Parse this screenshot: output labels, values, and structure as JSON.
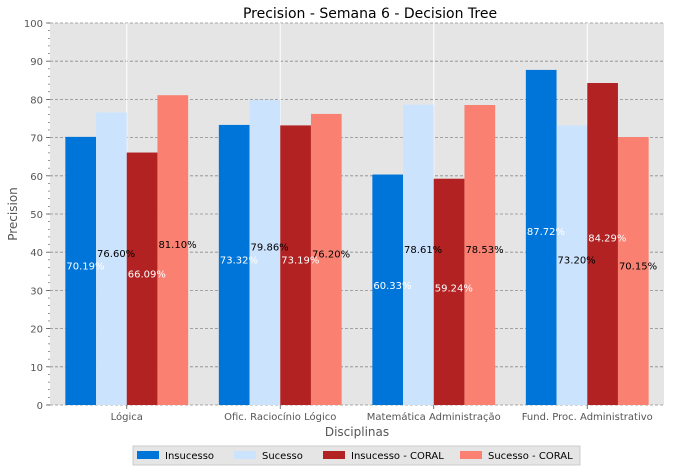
{
  "chart_data": {
    "type": "bar",
    "title": "Precision - Semana 6 - Decision Tree",
    "xlabel": "Disciplinas",
    "ylabel": "Precision",
    "ylim": [
      0,
      100
    ],
    "yticks": [
      0,
      10,
      20,
      30,
      40,
      50,
      60,
      70,
      80,
      90,
      100
    ],
    "grid": true,
    "legend_position": "bottom-center",
    "categories": [
      "Lógica",
      "Ofic. Raciocínio Lógico",
      "Matemática Administração",
      "Fund. Proc. Administrativo"
    ],
    "series": [
      {
        "name": "Insucesso",
        "color": "#0075d9",
        "label_color": "#ffffff",
        "values": [
          70.19,
          73.32,
          60.33,
          87.72
        ],
        "labels": [
          "70.19%",
          "73.32%",
          "60.33%",
          "87.72%"
        ]
      },
      {
        "name": "Sucesso",
        "color": "#cce3fd",
        "label_color": "#000000",
        "values": [
          76.6,
          79.86,
          78.61,
          73.2
        ],
        "labels": [
          "76.60%",
          "79.86%",
          "78.61%",
          "73.20%"
        ]
      },
      {
        "name": "Insucesso - CORAL",
        "color": "#b22222",
        "label_color": "#ffffff",
        "values": [
          66.09,
          73.19,
          59.24,
          84.29
        ],
        "labels": [
          "66.09%",
          "73.19%",
          "59.24%",
          "84.29%"
        ]
      },
      {
        "name": "Sucesso - CORAL",
        "color": "#fa8072",
        "label_color": "#000000",
        "values": [
          81.1,
          76.2,
          78.53,
          70.15
        ],
        "labels": [
          "81.10%",
          "76.20%",
          "78.53%",
          "70.15%"
        ]
      }
    ]
  }
}
